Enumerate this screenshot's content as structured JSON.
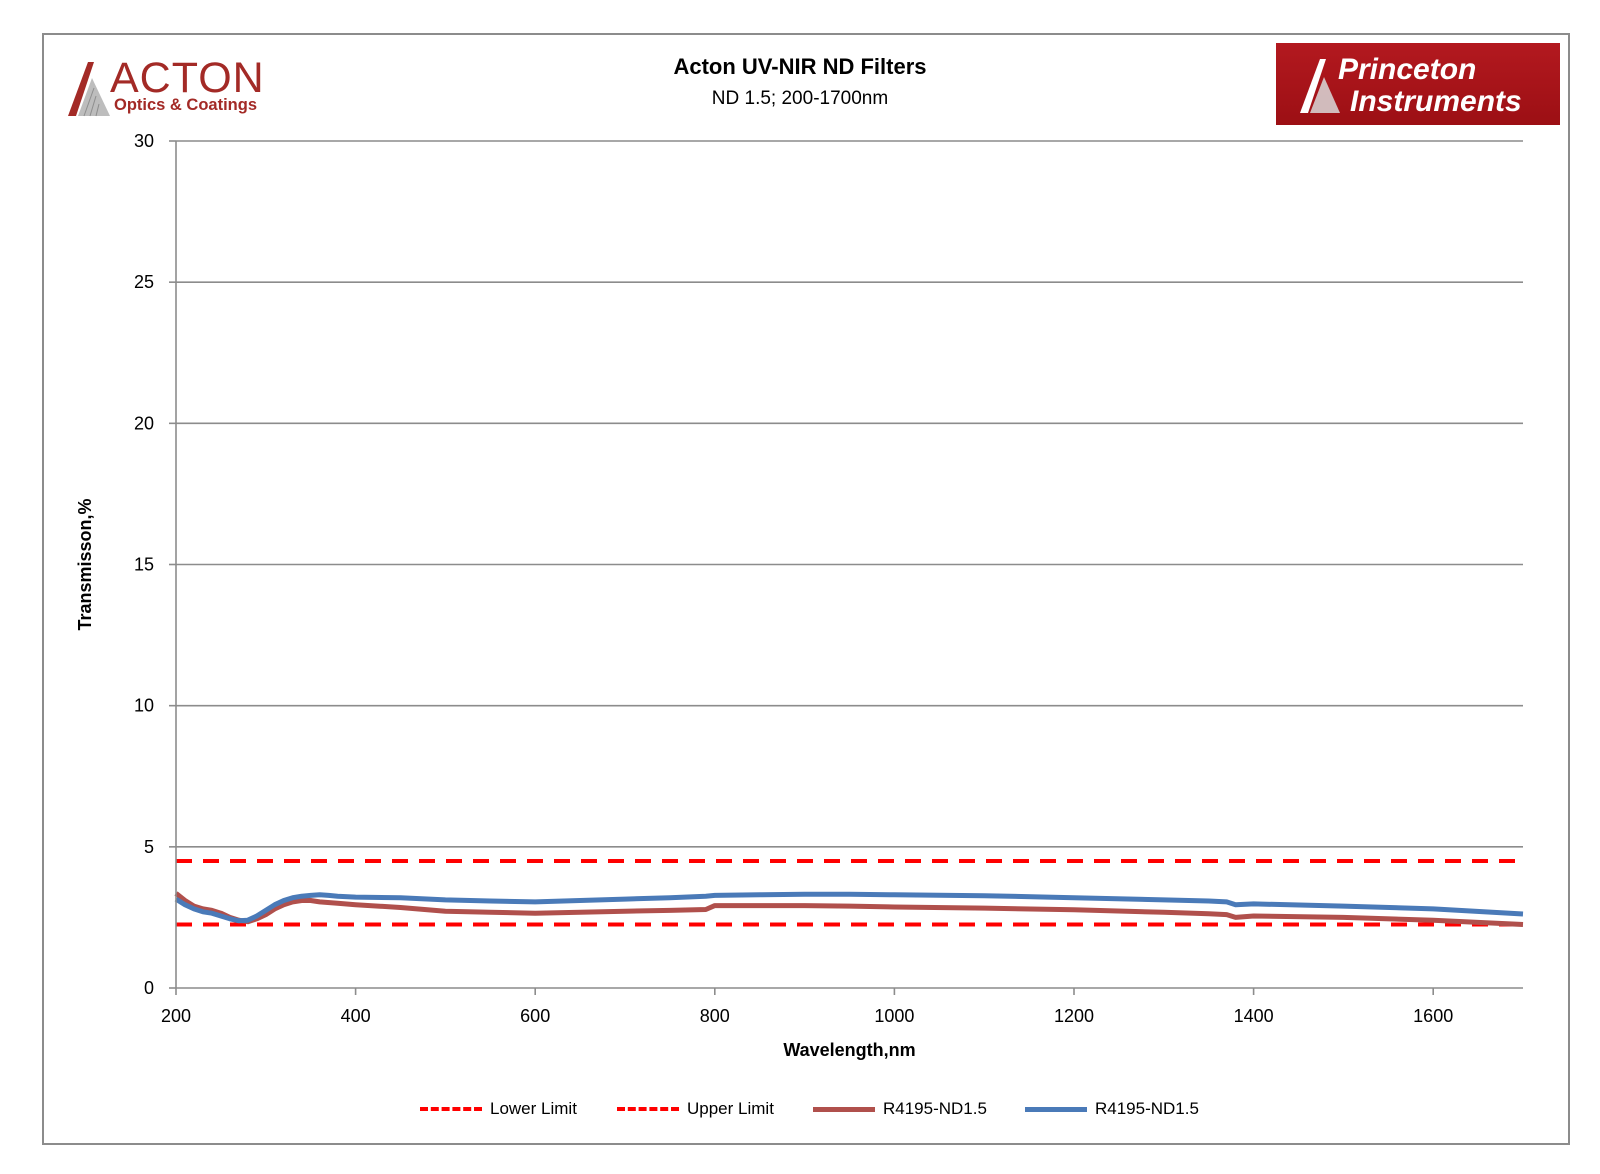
{
  "title": "Acton UV-NIR ND Filters",
  "subtitle": "ND 1.5;  200-1700nm",
  "logos": {
    "left": {
      "word": "ACTON",
      "sub": "Optics & Coatings",
      "color": "#a32a26"
    },
    "right": {
      "line1": "Princeton",
      "line2": "Instruments",
      "color": "#b3191f"
    }
  },
  "chart_data": {
    "type": "line",
    "title": "Acton UV-NIR ND Filters",
    "subtitle": "ND 1.5;  200-1700nm",
    "xlabel": "Wavelength,nm",
    "ylabel": "Transmisson,%",
    "xlim": [
      200,
      1700
    ],
    "ylim": [
      0,
      30
    ],
    "xticks": [
      200,
      400,
      600,
      800,
      1000,
      1200,
      1400,
      1600
    ],
    "yticks": [
      0,
      5,
      10,
      15,
      20,
      25,
      30
    ],
    "grid": "horizontal",
    "legend_position": "bottom",
    "series": [
      {
        "name": "Lower Limit",
        "color": "#ff0000",
        "style": "dashed",
        "x": [
          200,
          1700
        ],
        "y": [
          2.25,
          2.25
        ]
      },
      {
        "name": "Upper Limit",
        "color": "#ff0000",
        "style": "dashed",
        "x": [
          200,
          1700
        ],
        "y": [
          4.5,
          4.5
        ]
      },
      {
        "name": "R4195-ND1.5",
        "color": "#b0504c",
        "style": "solid",
        "x": [
          200,
          210,
          220,
          230,
          240,
          250,
          260,
          270,
          280,
          290,
          300,
          310,
          320,
          330,
          340,
          350,
          360,
          380,
          400,
          450,
          500,
          550,
          600,
          650,
          700,
          750,
          790,
          800,
          850,
          900,
          950,
          1000,
          1100,
          1200,
          1300,
          1350,
          1370,
          1380,
          1400,
          1500,
          1600,
          1700
        ],
        "y": [
          3.35,
          3.1,
          2.9,
          2.8,
          2.75,
          2.65,
          2.5,
          2.4,
          2.35,
          2.45,
          2.6,
          2.8,
          2.95,
          3.05,
          3.1,
          3.1,
          3.05,
          3.0,
          2.95,
          2.85,
          2.72,
          2.68,
          2.65,
          2.68,
          2.72,
          2.75,
          2.78,
          2.92,
          2.92,
          2.92,
          2.9,
          2.87,
          2.83,
          2.77,
          2.68,
          2.63,
          2.6,
          2.5,
          2.55,
          2.5,
          2.4,
          2.25
        ]
      },
      {
        "name": "R4195-ND1.5",
        "color": "#4a7ab8",
        "style": "solid",
        "x": [
          200,
          210,
          220,
          230,
          240,
          250,
          260,
          270,
          280,
          290,
          300,
          310,
          320,
          330,
          340,
          350,
          360,
          370,
          380,
          400,
          450,
          500,
          550,
          600,
          650,
          700,
          750,
          790,
          800,
          850,
          900,
          950,
          1000,
          1100,
          1200,
          1300,
          1350,
          1370,
          1380,
          1400,
          1500,
          1600,
          1700
        ],
        "y": [
          3.15,
          2.95,
          2.8,
          2.7,
          2.65,
          2.55,
          2.45,
          2.38,
          2.4,
          2.55,
          2.75,
          2.95,
          3.1,
          3.2,
          3.25,
          3.28,
          3.3,
          3.28,
          3.25,
          3.22,
          3.2,
          3.12,
          3.08,
          3.05,
          3.1,
          3.15,
          3.2,
          3.25,
          3.28,
          3.3,
          3.32,
          3.32,
          3.3,
          3.27,
          3.2,
          3.12,
          3.08,
          3.05,
          2.95,
          2.98,
          2.9,
          2.8,
          2.62
        ]
      }
    ]
  }
}
